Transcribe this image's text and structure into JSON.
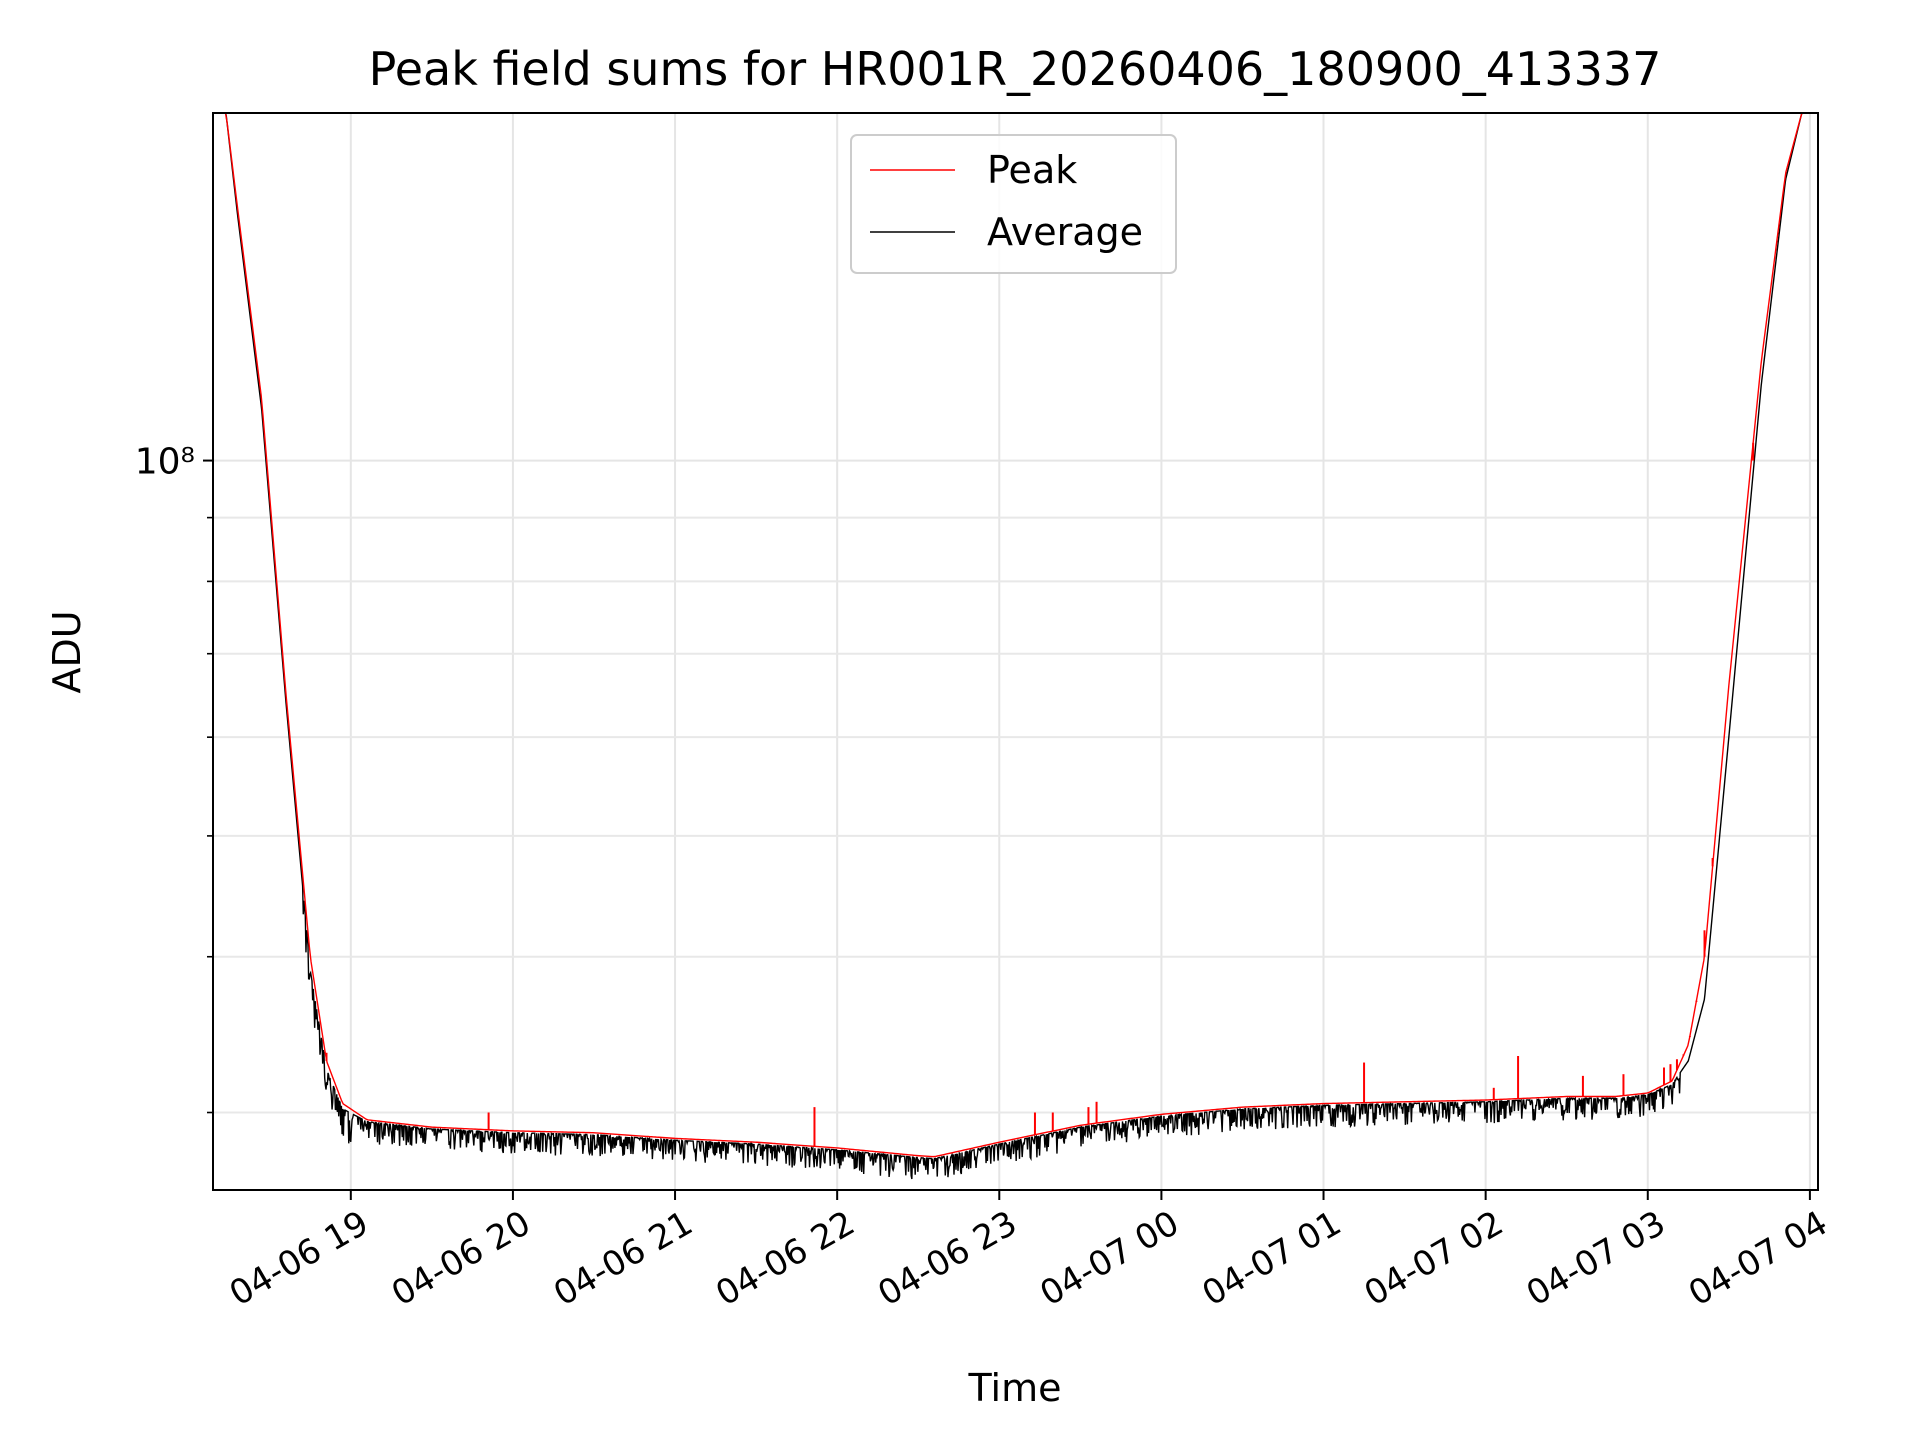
{
  "chart_data": {
    "type": "line",
    "title": "Peak field sums for HR001R_20260406_180900_413337",
    "xlabel": "Time",
    "ylabel": "ADU",
    "yscale": "log",
    "ylim": [
      26000000,
      190000000
    ],
    "xlim_hours_after_04-06_18:00": [
      0.15,
      10.05
    ],
    "grid": true,
    "legend_position": "upper center",
    "x_ticks": [
      {
        "t": 1,
        "label": "04-06 19"
      },
      {
        "t": 2,
        "label": "04-06 20"
      },
      {
        "t": 3,
        "label": "04-06 21"
      },
      {
        "t": 4,
        "label": "04-06 22"
      },
      {
        "t": 5,
        "label": "04-06 23"
      },
      {
        "t": 6,
        "label": "04-07 00"
      },
      {
        "t": 7,
        "label": "04-07 01"
      },
      {
        "t": 8,
        "label": "04-07 02"
      },
      {
        "t": 9,
        "label": "04-07 03"
      },
      {
        "t": 10,
        "label": "04-07 04"
      }
    ],
    "y_ticks": [
      {
        "value": 100000000,
        "label": "10⁸"
      }
    ],
    "y_minor_ticks": [
      30000000,
      40000000,
      50000000,
      60000000,
      70000000,
      80000000,
      90000000,
      200000000
    ],
    "series": [
      {
        "name": "Peak",
        "color": "#ff0000",
        "x": [
          0.15,
          0.23,
          0.3,
          0.45,
          0.6,
          0.75,
          0.85,
          0.95,
          1.1,
          1.5,
          2.0,
          2.5,
          3.0,
          3.5,
          4.0,
          4.5,
          4.6,
          5.0,
          5.5,
          6.0,
          6.5,
          7.0,
          7.5,
          8.0,
          8.5,
          8.8,
          9.0,
          9.15,
          9.25,
          9.35,
          9.5,
          9.7,
          9.85,
          9.95
        ],
        "y": [
          190000000,
          190000000,
          160000000,
          112000000,
          65000000,
          40000000,
          33000000,
          30500000,
          29600000,
          29200000,
          29000000,
          28900000,
          28600000,
          28400000,
          28100000,
          27700000,
          27650000,
          28400000,
          29300000,
          29900000,
          30300000,
          30500000,
          30600000,
          30700000,
          30900000,
          30900000,
          31100000,
          31800000,
          34000000,
          40000000,
          66000000,
          120000000,
          170000000,
          190000000
        ],
        "spikes": [
          {
            "x": 0.85,
            "y": 33500000
          },
          {
            "x": 1.85,
            "y": 30000000
          },
          {
            "x": 3.86,
            "y": 30300000
          },
          {
            "x": 5.22,
            "y": 30000000
          },
          {
            "x": 5.33,
            "y": 30000000
          },
          {
            "x": 5.55,
            "y": 30300000
          },
          {
            "x": 5.6,
            "y": 30600000
          },
          {
            "x": 7.25,
            "y": 32900000
          },
          {
            "x": 8.05,
            "y": 31400000
          },
          {
            "x": 8.2,
            "y": 33300000
          },
          {
            "x": 8.6,
            "y": 32100000
          },
          {
            "x": 8.85,
            "y": 32200000
          },
          {
            "x": 9.1,
            "y": 32600000
          },
          {
            "x": 9.14,
            "y": 32800000
          },
          {
            "x": 9.18,
            "y": 33100000
          },
          {
            "x": 9.22,
            "y": 33400000
          },
          {
            "x": 9.26,
            "y": 34500000
          },
          {
            "x": 9.3,
            "y": 36800000
          },
          {
            "x": 9.35,
            "y": 42000000
          },
          {
            "x": 9.4,
            "y": 48000000
          },
          {
            "x": 9.65,
            "y": 100000000
          }
        ]
      },
      {
        "name": "Average",
        "color": "#000000",
        "x": [
          0.15,
          0.23,
          0.3,
          0.45,
          0.6,
          0.75,
          0.85,
          0.95,
          1.1,
          1.5,
          2.0,
          2.5,
          3.0,
          3.5,
          4.0,
          4.5,
          4.6,
          5.0,
          5.5,
          6.0,
          6.5,
          7.0,
          7.5,
          8.0,
          8.5,
          8.8,
          9.0,
          9.15,
          9.25,
          9.35,
          9.5,
          9.7,
          9.85,
          9.95
        ],
        "y": [
          190000000,
          190000000,
          158000000,
          110000000,
          64000000,
          39000000,
          32500000,
          30200000,
          29500000,
          29100000,
          28900000,
          28800000,
          28500000,
          28300000,
          28000000,
          27600000,
          27550000,
          28300000,
          29200000,
          29800000,
          30200000,
          30400000,
          30500000,
          30600000,
          30800000,
          30800000,
          31000000,
          31600000,
          33000000,
          37000000,
          60000000,
          115000000,
          168000000,
          190000000
        ],
        "noise_depth_fraction": 0.04
      }
    ]
  }
}
